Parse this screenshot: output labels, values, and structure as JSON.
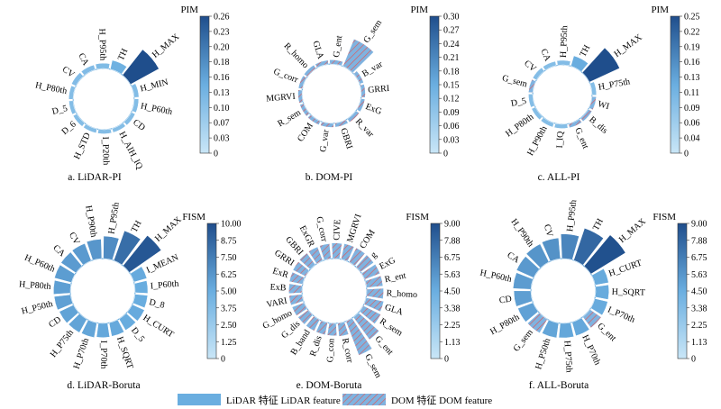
{
  "legend": {
    "lidar_label": "LiDAR 特征 LiDAR feature",
    "dom_label": "DOM 特征 DOM feature"
  },
  "colors": {
    "lidar": "#6aaee0",
    "dom": "#7fb3e0",
    "dom_hatch": "#e05a5a",
    "scale_low": "#c9e6f7",
    "scale_high": "#1f4e8c"
  },
  "chart_data": [
    {
      "type": "bar",
      "polar": true,
      "caption": "a. LiDAR-PI",
      "colorbar_title": "PIM",
      "vmax": 0.26,
      "ticks": [
        "0.26",
        "0.23",
        "0.20",
        "0.18",
        "0.16",
        "0.13",
        "0.10",
        "0.07",
        "0.03",
        "0"
      ],
      "features": [
        {
          "name": "TH",
          "value": 0.05,
          "source": "lidar"
        },
        {
          "name": "H_MAX",
          "value": 0.26,
          "source": "lidar"
        },
        {
          "name": "H_MIN",
          "value": 0.01,
          "source": "lidar"
        },
        {
          "name": "H_P60th",
          "value": 0.007,
          "source": "lidar"
        },
        {
          "name": "CD",
          "value": 0.006,
          "source": "lidar"
        },
        {
          "name": "H_AIH_IQ",
          "value": 0.005,
          "source": "lidar"
        },
        {
          "name": "I_P20th",
          "value": 0.005,
          "source": "lidar"
        },
        {
          "name": "H_STD",
          "value": 0.005,
          "source": "lidar"
        },
        {
          "name": "D_6",
          "value": 0.005,
          "source": "lidar"
        },
        {
          "name": "D_5",
          "value": 0.005,
          "source": "lidar"
        },
        {
          "name": "H_P80th",
          "value": 0.006,
          "source": "lidar"
        },
        {
          "name": "CV",
          "value": 0.012,
          "source": "lidar"
        },
        {
          "name": "CA",
          "value": 0.012,
          "source": "lidar"
        },
        {
          "name": "H_P95th",
          "value": 0.015,
          "source": "lidar"
        }
      ]
    },
    {
      "type": "bar",
      "polar": true,
      "caption": "b. DOM-PI",
      "colorbar_title": "PIM",
      "vmax": 0.3,
      "ticks": [
        "0.30",
        "0.27",
        "0.24",
        "0.21",
        "0.18",
        "0.15",
        "0.12",
        "0.09",
        "0.06",
        "0.03",
        "0"
      ],
      "features": [
        {
          "name": "G_ent",
          "value": 0.006,
          "source": "dom"
        },
        {
          "name": "G_sem",
          "value": 0.26,
          "source": "dom"
        },
        {
          "name": "B_var",
          "value": 0.005,
          "source": "dom"
        },
        {
          "name": "GRRI",
          "value": 0.004,
          "source": "dom"
        },
        {
          "name": "ExG",
          "value": 0.004,
          "source": "dom"
        },
        {
          "name": "R_var",
          "value": 0.004,
          "source": "dom"
        },
        {
          "name": "GBRI",
          "value": 0.004,
          "source": "dom"
        },
        {
          "name": "G_var",
          "value": 0.004,
          "source": "dom"
        },
        {
          "name": "COM",
          "value": 0.004,
          "source": "dom"
        },
        {
          "name": "R_sem",
          "value": 0.004,
          "source": "dom"
        },
        {
          "name": "MGRVI",
          "value": 0.004,
          "source": "dom"
        },
        {
          "name": "G_corr",
          "value": 0.004,
          "source": "dom"
        },
        {
          "name": "R_homo",
          "value": 0.005,
          "source": "dom"
        },
        {
          "name": "GLA",
          "value": 0.005,
          "source": "dom"
        }
      ]
    },
    {
      "type": "bar",
      "polar": true,
      "caption": "c. ALL-PI",
      "colorbar_title": "PIM",
      "vmax": 0.25,
      "ticks": [
        "0.25",
        "0.22",
        "0.19",
        "0.16",
        "0.13",
        "0.11",
        "0.09",
        "0.06",
        "0.04",
        "0"
      ],
      "features": [
        {
          "name": "TH",
          "value": 0.06,
          "source": "lidar"
        },
        {
          "name": "H_MAX",
          "value": 0.25,
          "source": "lidar"
        },
        {
          "name": "H_P75th",
          "value": 0.006,
          "source": "lidar"
        },
        {
          "name": "WI",
          "value": 0.006,
          "source": "dom"
        },
        {
          "name": "B_dis",
          "value": 0.005,
          "source": "dom"
        },
        {
          "name": "G_ent",
          "value": 0.005,
          "source": "dom"
        },
        {
          "name": "I_IQ",
          "value": 0.005,
          "source": "lidar"
        },
        {
          "name": "H_P90th",
          "value": 0.005,
          "source": "lidar"
        },
        {
          "name": "H_P80th",
          "value": 0.005,
          "source": "lidar"
        },
        {
          "name": "D_5",
          "value": 0.005,
          "source": "lidar"
        },
        {
          "name": "G_sem",
          "value": 0.006,
          "source": "dom"
        },
        {
          "name": "CV",
          "value": 0.006,
          "source": "lidar"
        },
        {
          "name": "CA",
          "value": 0.006,
          "source": "lidar"
        },
        {
          "name": "H_P95th",
          "value": 0.008,
          "source": "lidar"
        }
      ]
    },
    {
      "type": "bar",
      "polar": true,
      "caption": "d. LiDAR-Boruta",
      "colorbar_title": "FISM",
      "vmax": 10.0,
      "ticks": [
        "10.00",
        "8.75",
        "7.50",
        "6.25",
        "5.00",
        "3.75",
        "2.50",
        "1.25",
        "0"
      ],
      "features": [
        {
          "name": "TH",
          "value": 7.4,
          "source": "lidar"
        },
        {
          "name": "H_MAX",
          "value": 9.3,
          "source": "lidar"
        },
        {
          "name": "I_MEAN",
          "value": 2.6,
          "source": "lidar"
        },
        {
          "name": "I_P60th",
          "value": 2.4,
          "source": "lidar"
        },
        {
          "name": "D_8",
          "value": 2.4,
          "source": "lidar"
        },
        {
          "name": "H_CURT",
          "value": 2.6,
          "source": "lidar"
        },
        {
          "name": "D_5",
          "value": 2.5,
          "source": "lidar"
        },
        {
          "name": "H_SQRT",
          "value": 2.7,
          "source": "lidar"
        },
        {
          "name": "I_P70th",
          "value": 2.8,
          "source": "lidar"
        },
        {
          "name": "H_P70th",
          "value": 3.0,
          "source": "lidar"
        },
        {
          "name": "H_P75th",
          "value": 3.1,
          "source": "lidar"
        },
        {
          "name": "CD",
          "value": 3.2,
          "source": "lidar"
        },
        {
          "name": "H_P50th",
          "value": 3.4,
          "source": "lidar"
        },
        {
          "name": "H_P80th",
          "value": 3.5,
          "source": "lidar"
        },
        {
          "name": "H_P60th",
          "value": 3.7,
          "source": "lidar"
        },
        {
          "name": "CA",
          "value": 3.8,
          "source": "lidar"
        },
        {
          "name": "CV",
          "value": 3.9,
          "source": "lidar"
        },
        {
          "name": "H_P90th",
          "value": 4.2,
          "source": "lidar"
        },
        {
          "name": "H_P95th",
          "value": 5.0,
          "source": "lidar"
        }
      ]
    },
    {
      "type": "bar",
      "polar": true,
      "caption": "e. DOM-Boruta",
      "colorbar_title": "FISM",
      "vmax": 9.0,
      "ticks": [
        "9.00",
        "7.88",
        "6.75",
        "5.63",
        "4.50",
        "3.38",
        "2.25",
        "1.13",
        "0"
      ],
      "features": [
        {
          "name": "R_ent",
          "value": 3.2,
          "source": "dom"
        },
        {
          "name": "R_homo",
          "value": 3.3,
          "source": "dom"
        },
        {
          "name": "GLA",
          "value": 3.6,
          "source": "dom"
        },
        {
          "name": "R_sem",
          "value": 4.0,
          "source": "dom"
        },
        {
          "name": "G_ent",
          "value": 6.0,
          "source": "dom"
        },
        {
          "name": "G_sem",
          "value": 8.2,
          "source": "dom"
        },
        {
          "name": "R_corr",
          "value": 2.4,
          "source": "dom"
        },
        {
          "name": "G_con",
          "value": 2.2,
          "source": "dom"
        },
        {
          "name": "R_dis",
          "value": 2.2,
          "source": "dom"
        },
        {
          "name": "B_band",
          "value": 2.2,
          "source": "dom"
        },
        {
          "name": "G_dis",
          "value": 2.2,
          "source": "dom"
        },
        {
          "name": "G_homo",
          "value": 2.3,
          "source": "dom"
        },
        {
          "name": "VARI",
          "value": 2.4,
          "source": "dom"
        },
        {
          "name": "ExB",
          "value": 2.4,
          "source": "dom"
        },
        {
          "name": "ExR",
          "value": 2.5,
          "source": "dom"
        },
        {
          "name": "GRRI",
          "value": 2.6,
          "source": "dom"
        },
        {
          "name": "GBRI",
          "value": 2.7,
          "source": "dom"
        },
        {
          "name": "ExGR",
          "value": 2.8,
          "source": "dom"
        },
        {
          "name": "G_corr",
          "value": 2.9,
          "source": "dom"
        },
        {
          "name": "CIVE",
          "value": 3.0,
          "source": "dom"
        },
        {
          "name": "MGRVI",
          "value": 3.1,
          "source": "dom"
        },
        {
          "name": "COM",
          "value": 3.1,
          "source": "dom"
        },
        {
          "name": "g",
          "value": 3.1,
          "source": "dom"
        },
        {
          "name": "ExG",
          "value": 3.2,
          "source": "dom"
        }
      ]
    },
    {
      "type": "bar",
      "polar": true,
      "caption": "f. ALL-Boruta",
      "colorbar_title": "FISM",
      "vmax": 9.0,
      "ticks": [
        "9.00",
        "7.88",
        "6.75",
        "5.63",
        "4.50",
        "3.38",
        "2.25",
        "1.13",
        "0"
      ],
      "features": [
        {
          "name": "TH",
          "value": 7.2,
          "source": "lidar"
        },
        {
          "name": "H_MAX",
          "value": 8.8,
          "source": "lidar"
        },
        {
          "name": "H_CURT",
          "value": 2.4,
          "source": "lidar"
        },
        {
          "name": "H_SQRT",
          "value": 2.3,
          "source": "lidar"
        },
        {
          "name": "I_P70th",
          "value": 2.3,
          "source": "lidar"
        },
        {
          "name": "G_ent",
          "value": 2.4,
          "source": "dom"
        },
        {
          "name": "H_P70th",
          "value": 2.5,
          "source": "lidar"
        },
        {
          "name": "H_P75th",
          "value": 2.6,
          "source": "lidar"
        },
        {
          "name": "H_P50th",
          "value": 2.7,
          "source": "lidar"
        },
        {
          "name": "G_sem",
          "value": 2.9,
          "source": "dom"
        },
        {
          "name": "H_P80th",
          "value": 3.0,
          "source": "lidar"
        },
        {
          "name": "CD",
          "value": 3.2,
          "source": "lidar"
        },
        {
          "name": "H_P60th",
          "value": 3.4,
          "source": "lidar"
        },
        {
          "name": "CA",
          "value": 3.6,
          "source": "lidar"
        },
        {
          "name": "H_P90th",
          "value": 3.9,
          "source": "lidar"
        },
        {
          "name": "CV",
          "value": 4.1,
          "source": "lidar"
        },
        {
          "name": "H_P95th",
          "value": 5.0,
          "source": "lidar"
        }
      ]
    }
  ]
}
